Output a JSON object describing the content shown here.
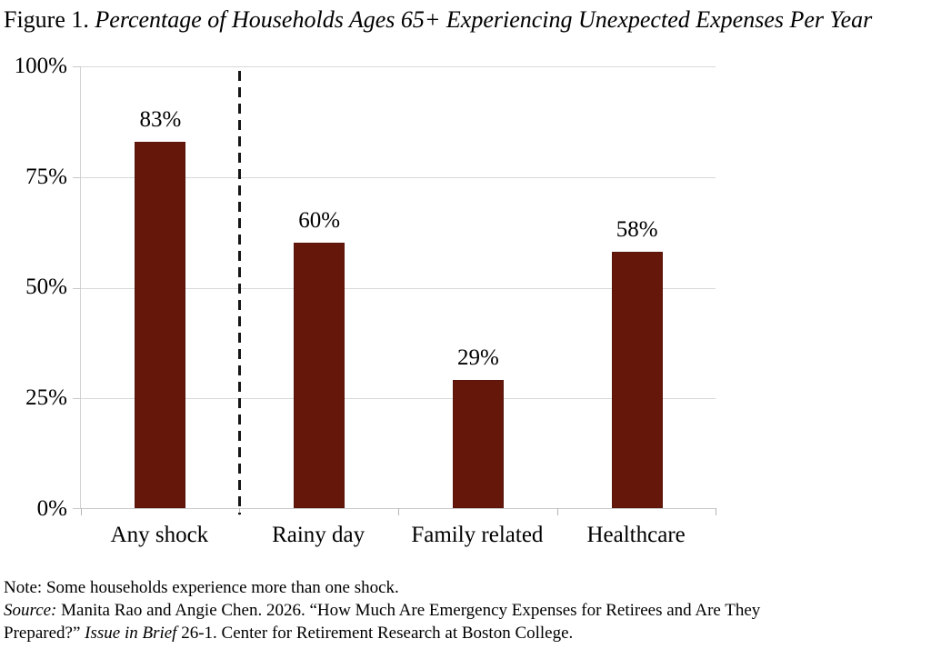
{
  "figure": {
    "label": "Figure 1.",
    "title": "Percentage of Households Ages 65+ Experiencing Unexpected Expenses Per Year"
  },
  "chart_data": {
    "type": "bar",
    "categories": [
      "Any shock",
      "Rainy day",
      "Family related",
      "Healthcare"
    ],
    "values": [
      83,
      60,
      29,
      58
    ],
    "value_labels": [
      "83%",
      "60%",
      "29%",
      "58%"
    ],
    "title": "Percentage of Households Ages 65+ Experiencing Unexpected Expenses Per Year",
    "xlabel": "",
    "ylabel": "",
    "ylim": [
      0,
      100
    ],
    "yticks": [
      "100%",
      "75%",
      "50%",
      "25%",
      "0%"
    ],
    "grid": "horizontal gridlines at 25% intervals",
    "legend": "none",
    "bar_color": "#651709",
    "annotation": "vertical dashed separator line between 'Any shock' and the other three categories"
  },
  "notes": {
    "line1": "Note: Some households experience more than one shock.",
    "source_label": "Source:",
    "source_line2": " Manita Rao and Angie Chen. 2026. “How Much Are Emergency Expenses for Retirees and Are They",
    "source_line3_pre": "Prepared?” ",
    "source_line3_italic": "Issue in Brief",
    "source_line3_post": " 26-1. Center for Retirement Research at Boston College."
  }
}
